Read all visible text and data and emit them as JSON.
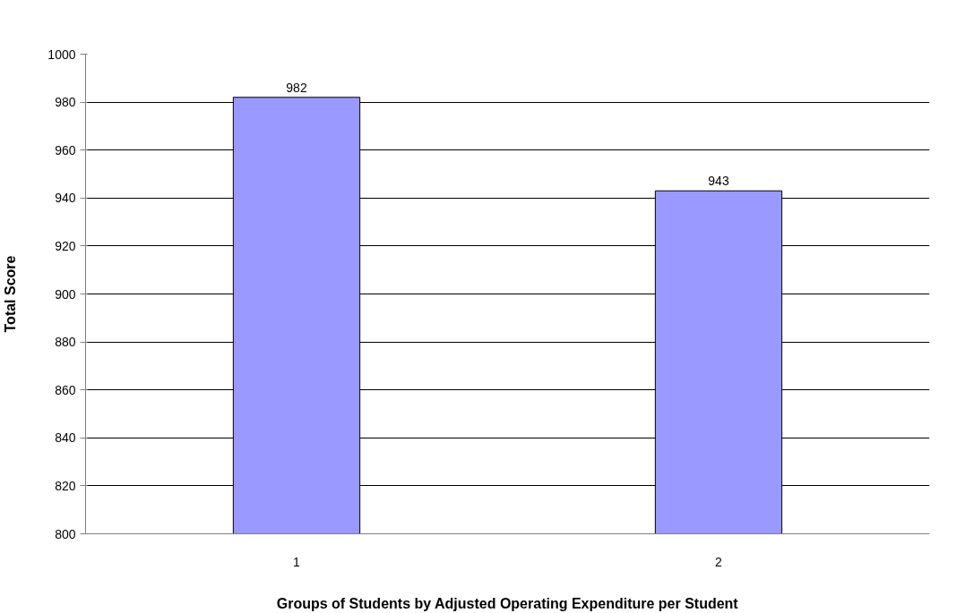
{
  "chart_data": {
    "type": "bar",
    "categories": [
      "1",
      "2"
    ],
    "values": [
      982,
      943
    ],
    "color": "#9999ff",
    "ylim": [
      800,
      1000
    ],
    "yticks": [
      800,
      820,
      840,
      860,
      880,
      900,
      920,
      940,
      960,
      980,
      1000
    ],
    "xlabel": "Groups of Students by Adjusted Operating Expenditure per Student",
    "ylabel": "Total Score",
    "data_labels": true,
    "grid": "y"
  }
}
